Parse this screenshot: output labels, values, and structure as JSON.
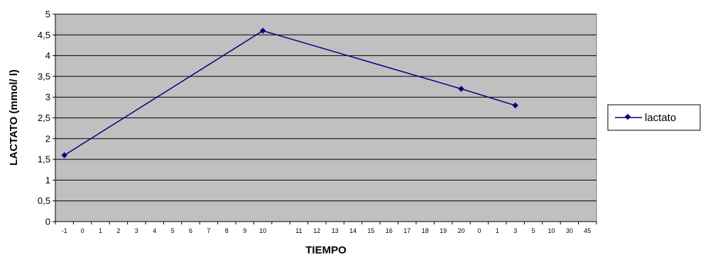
{
  "chart_data": {
    "type": "line",
    "title": "",
    "xlabel": "TIEMPO",
    "ylabel": "LACTATO (mmol/ l)",
    "categories": [
      "-1",
      "0",
      "1",
      "2",
      "3",
      "4",
      "5",
      "6",
      "7",
      "8",
      "9",
      "10",
      "",
      "11",
      "12",
      "13",
      "14",
      "15",
      "16",
      "17",
      "18",
      "19",
      "20",
      "0",
      "1",
      "3",
      "5",
      "10",
      "30",
      "45"
    ],
    "y_ticks": [
      "0",
      "0,5",
      "1",
      "1,5",
      "2",
      "2,5",
      "3",
      "3,5",
      "4",
      "4,5",
      "5"
    ],
    "ylim": [
      0,
      5
    ],
    "grid": true,
    "legend_position": "right",
    "series": [
      {
        "name": "lactato",
        "points": [
          {
            "category_index": 0,
            "value": 1.6
          },
          {
            "category_index": 11,
            "value": 4.6
          },
          {
            "category_index": 22,
            "value": 3.2
          },
          {
            "category_index": 25,
            "value": 2.8
          }
        ]
      }
    ],
    "colors": {
      "plot_background": "#c0c0c0",
      "gridline": "#000000",
      "series_line": "#000080"
    }
  }
}
